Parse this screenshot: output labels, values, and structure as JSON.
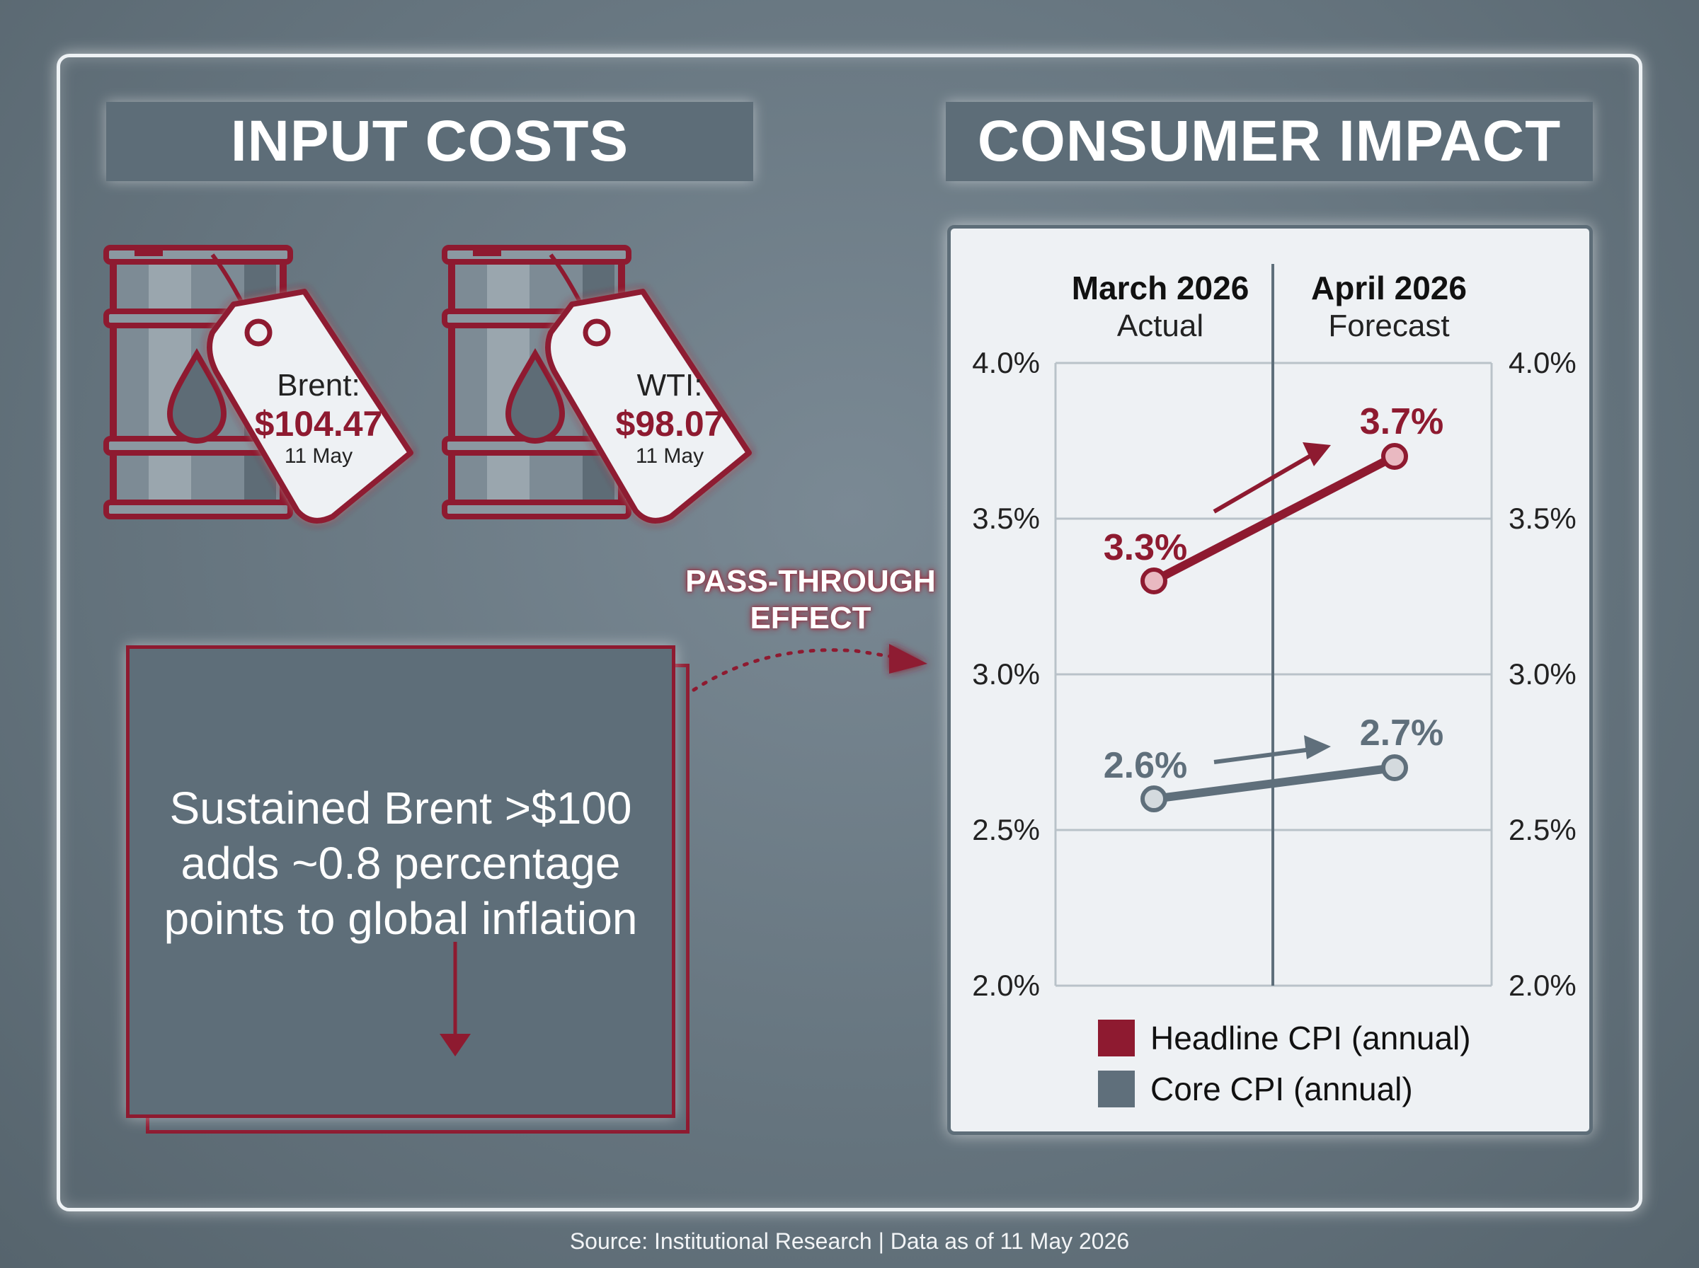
{
  "left_header": "INPUT COSTS",
  "right_header": "CONSUMER IMPACT",
  "tags": [
    {
      "name": "Brent:",
      "price": "$104.47",
      "date": "11 May"
    },
    {
      "name": "WTI:",
      "price": "$98.07",
      "date": "11 May"
    }
  ],
  "pass_through": {
    "line1": "PASS-THROUGH",
    "line2": "EFFECT"
  },
  "callout": {
    "text": "Sustained Brent >$100 adds ~0.8 percentage points to global inflation"
  },
  "source": "Source: Institutional Research | Data as of 11 May 2026",
  "colors": {
    "headline": "#8e1a30",
    "core": "#5f6f7b",
    "panel": "#eef1f4"
  },
  "icons": [
    "oil-barrel-icon",
    "price-tag-icon",
    "oil-drop-icon",
    "arrow-down-icon",
    "arrow-up-right-icon"
  ],
  "chart_data": {
    "type": "line",
    "categories": [
      {
        "title": "March 2026",
        "subtitle": "Actual"
      },
      {
        "title": "April 2026",
        "subtitle": "Forecast"
      }
    ],
    "series": [
      {
        "name": "Headline CPI (annual)",
        "values": [
          3.3,
          3.7
        ],
        "labels": [
          "3.3%",
          "3.7%"
        ],
        "color": "#8e1a30"
      },
      {
        "name": "Core CPI (annual)",
        "values": [
          2.6,
          2.7
        ],
        "labels": [
          "2.6%",
          "2.7%"
        ],
        "color": "#5f6f7b"
      }
    ],
    "yticks": [
      "2.0%",
      "2.5%",
      "3.0%",
      "3.5%",
      "4.0%"
    ],
    "ylim": [
      2.0,
      4.0
    ],
    "grid": true,
    "legend_position": "bottom"
  }
}
